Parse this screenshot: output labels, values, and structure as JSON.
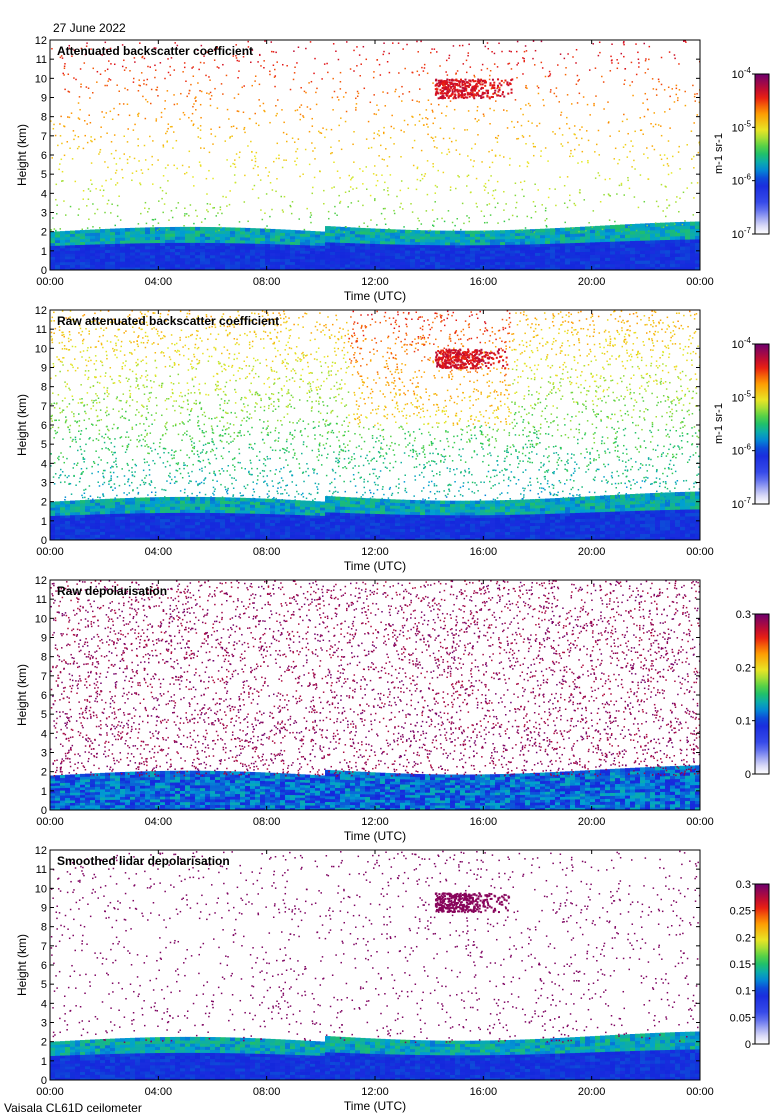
{
  "date": "27 June 2022",
  "footer": "Vaisala CL61D ceilometer",
  "chart_data": [
    {
      "type": "heatmap",
      "title": "Attenuated backscatter coefficient",
      "xlabel": "Time (UTC)",
      "ylabel": "Height (km)",
      "x_ticks": [
        "00:00",
        "04:00",
        "08:00",
        "12:00",
        "16:00",
        "20:00",
        "00:00"
      ],
      "y_ticks": [
        "0",
        "1",
        "2",
        "3",
        "4",
        "5",
        "6",
        "7",
        "8",
        "9",
        "10",
        "11",
        "12"
      ],
      "ylim": [
        0,
        12
      ],
      "colorbar": {
        "scale": "log",
        "ticks": [
          "10-7",
          "10-6",
          "10-5",
          "10-4"
        ],
        "tick_display": [
          [
            "10",
            "-7"
          ],
          [
            "10",
            "-6"
          ],
          [
            "10",
            "-5"
          ],
          [
            "10",
            "-4"
          ]
        ],
        "unit": "m-1 sr-1",
        "vmin": 1e-07,
        "vmax": 0.0001
      },
      "features": {
        "boundary_layer_top_km": 2.0,
        "cloud": {
          "time_h": [
            14.2,
            17.2
          ],
          "height_km": [
            9.0,
            10.0
          ]
        },
        "noise": "sparse"
      }
    },
    {
      "type": "heatmap",
      "title": "Raw attenuated backscatter coefficient",
      "xlabel": "Time (UTC)",
      "ylabel": "Height (km)",
      "x_ticks": [
        "00:00",
        "04:00",
        "08:00",
        "12:00",
        "16:00",
        "20:00",
        "00:00"
      ],
      "y_ticks": [
        "0",
        "1",
        "2",
        "3",
        "4",
        "5",
        "6",
        "7",
        "8",
        "9",
        "10",
        "11",
        "12"
      ],
      "ylim": [
        0,
        12
      ],
      "colorbar": {
        "scale": "log",
        "ticks": [
          "10-7",
          "10-6",
          "10-5",
          "10-4"
        ],
        "tick_display": [
          [
            "10",
            "-7"
          ],
          [
            "10",
            "-6"
          ],
          [
            "10",
            "-5"
          ],
          [
            "10",
            "-4"
          ]
        ],
        "unit": "m-1 sr-1",
        "vmin": 1e-07,
        "vmax": 0.0001
      },
      "features": {
        "boundary_layer_top_km": 2.0,
        "cloud": {
          "time_h": [
            14.2,
            17.2
          ],
          "height_km": [
            9.0,
            10.0
          ]
        },
        "noise": "dense"
      }
    },
    {
      "type": "heatmap",
      "title": "Raw depolarisation",
      "xlabel": "Time (UTC)",
      "ylabel": "Height (km)",
      "x_ticks": [
        "00:00",
        "04:00",
        "08:00",
        "12:00",
        "16:00",
        "20:00",
        "00:00"
      ],
      "y_ticks": [
        "0",
        "1",
        "2",
        "3",
        "4",
        "5",
        "6",
        "7",
        "8",
        "9",
        "10",
        "11",
        "12"
      ],
      "ylim": [
        0,
        12
      ],
      "colorbar": {
        "scale": "linear",
        "ticks": [
          "0",
          "0.1",
          "0.2",
          "0.3"
        ],
        "vmin": 0,
        "vmax": 0.3
      },
      "features": {
        "boundary_layer_top_km": 1.8,
        "noise": "saturated"
      }
    },
    {
      "type": "heatmap",
      "title": "Smoothed lidar depolarisation",
      "xlabel": "Time (UTC)",
      "ylabel": "Height (km)",
      "x_ticks": [
        "00:00",
        "04:00",
        "08:00",
        "12:00",
        "16:00",
        "20:00",
        "00:00"
      ],
      "y_ticks": [
        "0",
        "1",
        "2",
        "3",
        "4",
        "5",
        "6",
        "7",
        "8",
        "9",
        "10",
        "11",
        "12"
      ],
      "ylim": [
        0,
        12
      ],
      "colorbar": {
        "scale": "linear",
        "ticks": [
          "0",
          "0.05",
          "0.1",
          "0.15",
          "0.2",
          "0.25",
          "0.3"
        ],
        "vmin": 0,
        "vmax": 0.3
      },
      "features": {
        "boundary_layer_top_km": 2.0,
        "cloud": {
          "time_h": [
            14.2,
            17.2
          ],
          "height_km": [
            8.8,
            9.8
          ]
        },
        "noise": "sparse"
      }
    }
  ]
}
